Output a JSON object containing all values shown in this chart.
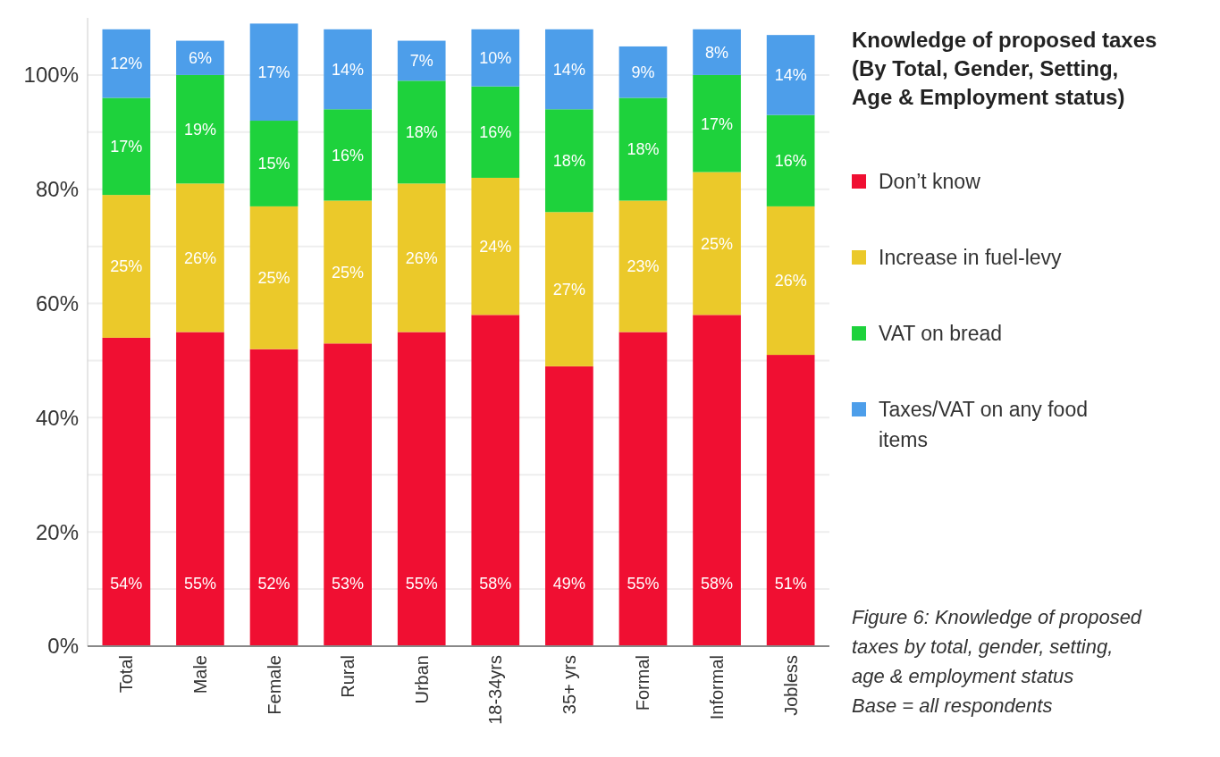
{
  "chart_data": {
    "type": "bar",
    "stacked": true,
    "title": "Knowledge of proposed taxes (By Total, Gender, Setting, Age & Employment status)",
    "categories": [
      "Total",
      "Male",
      "Female",
      "Rural",
      "Urban",
      "18-34yrs",
      "35+ yrs",
      "Formal",
      "Informal",
      "Jobless"
    ],
    "series": [
      {
        "name": "Don’t know",
        "color": "#f00f32",
        "values": [
          54,
          55,
          52,
          53,
          55,
          58,
          49,
          55,
          58,
          51
        ],
        "value_labels": [
          "54%",
          "55%",
          "52%",
          "53%",
          "55%",
          "58%",
          "49%",
          "55%",
          "58%",
          "51%"
        ]
      },
      {
        "name": "Increase in fuel-levy",
        "color": "#ebc92a",
        "values": [
          25,
          26,
          25,
          25,
          26,
          24,
          27,
          23,
          25,
          26
        ],
        "value_labels": [
          "25%",
          "26%",
          "25%",
          "25%",
          "26%",
          "24%",
          "27%",
          "23%",
          "25%",
          "26%"
        ]
      },
      {
        "name": "VAT on bread",
        "color": "#1ed23c",
        "values": [
          17,
          19,
          15,
          16,
          18,
          16,
          18,
          18,
          17,
          16
        ],
        "value_labels": [
          "17%",
          "19%",
          "15%",
          "16%",
          "18%",
          "16%",
          "18%",
          "18%",
          "17%",
          "16%"
        ]
      },
      {
        "name": "Taxes/VAT on any food items",
        "color": "#4d9eea",
        "values": [
          12,
          6,
          17,
          14,
          7,
          10,
          14,
          9,
          8,
          14
        ],
        "value_labels": [
          "12%",
          "6%",
          "17%",
          "14%",
          "7%",
          "10%",
          "14%",
          "9%",
          "8%",
          "14%"
        ]
      }
    ],
    "ylim": [
      0,
      110
    ],
    "yticks": [
      {
        "value": 0,
        "label": "0%"
      },
      {
        "value": 10,
        "label": null
      },
      {
        "value": 20,
        "label": "20%"
      },
      {
        "value": 30,
        "label": null
      },
      {
        "value": 40,
        "label": "40%"
      },
      {
        "value": 50,
        "label": null
      },
      {
        "value": 60,
        "label": "60%"
      },
      {
        "value": 70,
        "label": null
      },
      {
        "value": 80,
        "label": "80%"
      },
      {
        "value": 90,
        "label": null
      },
      {
        "value": 100,
        "label": "100%"
      }
    ],
    "grid": "y",
    "legend": "right",
    "annotations": [
      "Figure 6: Knowledge of proposed taxes by total, gender, setting, age & employment status",
      "Base = all respondents"
    ]
  }
}
